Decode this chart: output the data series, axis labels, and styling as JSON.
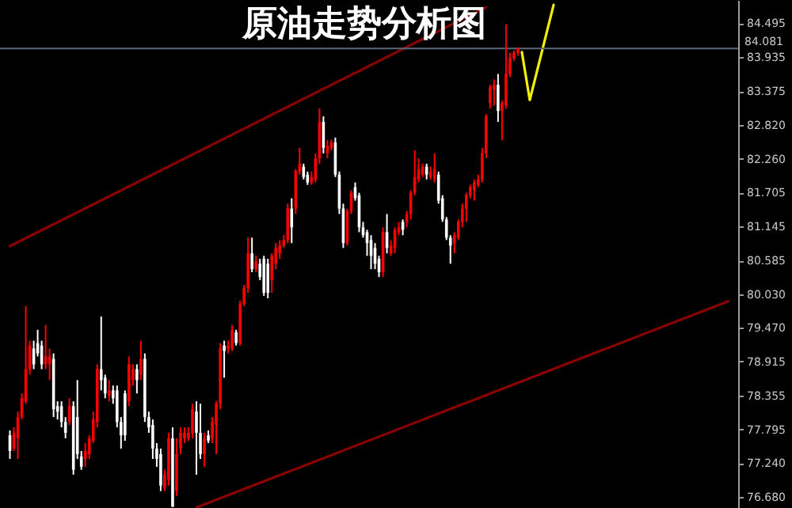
{
  "chart_data": {
    "type": "candlestick",
    "title": "原油走势分析图",
    "categories": [
      null,
      null,
      null,
      null,
      null,
      null,
      null,
      null,
      null,
      null,
      null,
      null,
      null,
      null,
      null,
      null,
      null,
      null,
      null,
      null,
      null,
      null,
      null,
      null,
      null,
      null,
      null,
      null,
      null,
      null,
      null,
      null,
      null,
      null,
      null,
      null,
      null,
      null,
      null,
      null,
      null,
      null,
      null,
      null,
      null,
      null,
      null,
      null,
      null,
      null,
      null,
      null,
      null,
      null,
      null,
      null,
      null,
      null,
      null,
      null,
      null,
      null,
      null,
      null,
      null,
      null,
      null,
      null,
      null,
      null,
      null,
      null,
      null,
      null,
      null,
      null,
      null,
      null,
      null,
      null,
      null,
      null,
      null,
      null,
      null,
      null,
      null,
      null,
      null,
      null,
      null,
      null,
      null,
      null,
      null,
      null,
      null,
      null,
      null,
      null,
      null,
      null,
      null,
      null,
      null,
      null,
      null,
      null,
      null,
      null,
      null,
      null,
      null,
      null,
      null,
      null,
      null,
      null,
      null,
      null,
      null,
      null,
      null,
      null,
      null,
      null,
      null,
      null,
      null,
      null,
      null,
      null,
      null,
      null,
      null,
      null,
      null,
      null,
      null,
      null,
      null,
      null,
      null,
      null,
      null,
      null,
      null,
      null,
      null,
      null,
      null,
      null,
      null,
      null,
      null,
      null,
      null,
      null,
      null,
      null,
      null,
      null,
      null,
      null,
      null,
      null,
      null,
      null,
      null,
      null,
      null,
      null,
      null,
      null,
      null,
      null,
      null,
      null,
      null,
      null,
      null,
      null
    ],
    "ohlc": [
      [
        77.7,
        77.78,
        77.31,
        77.44
      ],
      [
        77.48,
        77.83,
        77.44,
        77.74
      ],
      [
        77.65,
        78.09,
        77.31,
        78.0
      ],
      [
        78.0,
        78.39,
        77.96,
        78.31
      ],
      [
        78.26,
        79.83,
        78.22,
        78.79
      ],
      [
        78.79,
        79.26,
        78.7,
        79.18
      ],
      [
        79.13,
        79.26,
        78.79,
        78.87
      ],
      [
        79.22,
        79.44,
        79.0,
        79.05
      ],
      [
        79.18,
        79.26,
        78.79,
        78.87
      ],
      [
        78.87,
        79.52,
        78.79,
        79.0
      ],
      [
        78.87,
        79.13,
        78.61,
        79.0
      ],
      [
        78.96,
        79.05,
        78.0,
        78.13
      ],
      [
        78.18,
        78.26,
        77.96,
        78.09
      ],
      [
        78.18,
        78.26,
        77.83,
        77.92
      ],
      [
        77.92,
        78.0,
        77.65,
        77.74
      ],
      [
        77.92,
        78.31,
        77.87,
        78.18
      ],
      [
        78.18,
        78.26,
        77.05,
        77.13
      ],
      [
        78.0,
        78.61,
        77.31,
        77.39
      ],
      [
        77.35,
        77.44,
        77.13,
        77.18
      ],
      [
        77.31,
        77.57,
        77.18,
        77.44
      ],
      [
        77.39,
        77.7,
        77.31,
        77.65
      ],
      [
        77.61,
        78.09,
        77.57,
        77.96
      ],
      [
        77.92,
        78.87,
        77.83,
        78.79
      ],
      [
        78.79,
        79.66,
        78.44,
        78.61
      ],
      [
        78.65,
        78.7,
        78.31,
        78.39
      ],
      [
        78.35,
        78.61,
        78.26,
        78.44
      ],
      [
        78.44,
        78.52,
        78.22,
        78.31
      ],
      [
        78.44,
        78.52,
        77.83,
        77.92
      ],
      [
        77.92,
        78.0,
        77.48,
        77.7
      ],
      [
        78.39,
        78.44,
        77.61,
        77.7
      ],
      [
        78.26,
        79.0,
        78.18,
        78.87
      ],
      [
        78.61,
        78.87,
        78.52,
        78.79
      ],
      [
        78.79,
        78.87,
        78.39,
        78.61
      ],
      [
        78.7,
        79.26,
        78.61,
        78.96
      ],
      [
        78.96,
        79.05,
        77.92,
        78.0
      ],
      [
        78.0,
        78.09,
        77.74,
        77.83
      ],
      [
        77.87,
        77.96,
        77.31,
        77.48
      ],
      [
        77.48,
        77.57,
        77.18,
        77.31
      ],
      [
        77.39,
        77.48,
        76.78,
        76.87
      ],
      [
        76.83,
        77.13,
        76.78,
        77.05
      ],
      [
        76.96,
        77.74,
        76.87,
        77.65
      ],
      [
        77.65,
        77.83,
        76.52,
        76.52
      ],
      [
        76.78,
        77.65,
        76.7,
        77.39
      ],
      [
        77.48,
        77.83,
        77.39,
        77.74
      ],
      [
        77.65,
        77.83,
        77.57,
        77.74
      ],
      [
        77.65,
        77.83,
        77.61,
        77.74
      ],
      [
        77.74,
        78.22,
        77.65,
        78.13
      ],
      [
        78.09,
        78.26,
        77.05,
        77.74
      ],
      [
        77.74,
        78.22,
        77.31,
        77.39
      ],
      [
        77.39,
        77.74,
        77.18,
        77.65
      ],
      [
        77.7,
        77.78,
        77.57,
        77.61
      ],
      [
        77.65,
        78.0,
        77.57,
        77.92
      ],
      [
        77.87,
        78.26,
        77.39,
        78.22
      ],
      [
        78.22,
        79.22,
        78.13,
        79.13
      ],
      [
        79.18,
        79.26,
        78.65,
        79.09
      ],
      [
        79.13,
        79.26,
        79.05,
        79.18
      ],
      [
        79.13,
        79.52,
        79.09,
        79.44
      ],
      [
        79.4,
        79.44,
        79.18,
        79.22
      ],
      [
        79.22,
        79.92,
        79.18,
        79.87
      ],
      [
        79.87,
        80.18,
        79.83,
        80.13
      ],
      [
        80.13,
        80.96,
        80.05,
        80.7
      ],
      [
        80.7,
        80.96,
        80.39,
        80.44
      ],
      [
        80.44,
        80.66,
        80.39,
        80.57
      ],
      [
        80.53,
        80.61,
        80.26,
        80.31
      ],
      [
        80.61,
        80.66,
        80.0,
        80.05
      ],
      [
        80.53,
        80.61,
        79.96,
        80.05
      ],
      [
        80.26,
        80.7,
        80.05,
        80.66
      ],
      [
        80.53,
        80.87,
        80.44,
        80.79
      ],
      [
        80.7,
        80.92,
        80.61,
        80.83
      ],
      [
        80.83,
        81.0,
        80.79,
        80.92
      ],
      [
        80.92,
        81.52,
        80.87,
        81.44
      ],
      [
        81.44,
        81.61,
        80.87,
        81.13
      ],
      [
        81.44,
        82.09,
        81.35,
        82.05
      ],
      [
        82.05,
        82.44,
        82.0,
        82.18
      ],
      [
        82.13,
        82.18,
        81.92,
        81.96
      ],
      [
        82.0,
        82.05,
        81.83,
        81.87
      ],
      [
        81.87,
        82.05,
        81.83,
        81.96
      ],
      [
        81.92,
        82.35,
        81.87,
        82.27
      ],
      [
        82.27,
        83.09,
        82.18,
        82.87
      ],
      [
        82.87,
        82.96,
        82.35,
        82.44
      ],
      [
        82.35,
        82.57,
        82.27,
        82.48
      ],
      [
        82.44,
        82.57,
        82.4,
        82.53
      ],
      [
        82.53,
        82.61,
        81.96,
        82.0
      ],
      [
        82.0,
        82.05,
        81.35,
        81.44
      ],
      [
        81.44,
        81.52,
        80.79,
        80.87
      ],
      [
        80.87,
        81.44,
        80.83,
        81.4
      ],
      [
        81.4,
        81.74,
        81.35,
        81.7
      ],
      [
        81.79,
        81.87,
        81.57,
        81.61
      ],
      [
        81.66,
        81.7,
        81.05,
        81.13
      ],
      [
        81.13,
        81.22,
        80.96,
        81.0
      ],
      [
        81.05,
        81.09,
        80.66,
        80.87
      ],
      [
        80.92,
        81.0,
        80.44,
        80.66
      ],
      [
        80.79,
        80.87,
        80.44,
        80.53
      ],
      [
        80.61,
        80.66,
        80.31,
        80.39
      ],
      [
        80.39,
        81.13,
        80.31,
        81.05
      ],
      [
        81.05,
        81.35,
        80.7,
        80.79
      ],
      [
        80.7,
        80.92,
        80.66,
        80.83
      ],
      [
        80.79,
        81.13,
        80.7,
        81.09
      ],
      [
        81.05,
        81.22,
        81.0,
        81.13
      ],
      [
        81.22,
        81.26,
        81.0,
        81.09
      ],
      [
        81.22,
        81.4,
        81.13,
        81.35
      ],
      [
        81.35,
        81.74,
        81.26,
        81.7
      ],
      [
        81.7,
        82.4,
        81.66,
        81.96
      ],
      [
        81.92,
        82.27,
        81.87,
        82.09
      ],
      [
        82.0,
        82.18,
        81.96,
        82.13
      ],
      [
        82.13,
        82.18,
        81.92,
        82.0
      ],
      [
        81.96,
        82.13,
        81.92,
        82.05
      ],
      [
        81.92,
        82.35,
        81.87,
        82.09
      ],
      [
        82.0,
        82.05,
        81.52,
        81.57
      ],
      [
        81.61,
        81.66,
        81.22,
        81.26
      ],
      [
        81.26,
        81.3,
        80.92,
        80.96
      ],
      [
        80.96,
        81.0,
        80.53,
        80.83
      ],
      [
        80.87,
        81.05,
        80.7,
        81.0
      ],
      [
        80.96,
        81.26,
        80.92,
        81.22
      ],
      [
        81.22,
        81.52,
        81.13,
        81.44
      ],
      [
        81.44,
        81.7,
        81.22,
        81.66
      ],
      [
        81.66,
        81.83,
        81.61,
        81.79
      ],
      [
        81.74,
        81.92,
        81.57,
        81.87
      ],
      [
        81.83,
        82.0,
        81.79,
        81.92
      ],
      [
        81.92,
        82.44,
        81.87,
        82.35
      ],
      [
        82.35,
        83.0,
        82.27,
        82.96
      ],
      [
        83.18,
        83.48,
        83.09,
        83.44
      ],
      [
        83.4,
        83.57,
        83.14,
        83.48
      ],
      [
        83.48,
        83.66,
        82.87,
        83.05
      ],
      [
        83.05,
        83.22,
        82.57,
        83.18
      ],
      [
        83.14,
        84.48,
        83.09,
        83.66
      ],
      [
        83.66,
        84.01,
        83.61,
        83.92
      ],
      [
        83.92,
        84.05,
        83.88,
        84.01
      ],
      [
        84.01,
        84.1,
        83.96,
        84.08
      ],
      null,
      null,
      null,
      null,
      null,
      null,
      null,
      null,
      null,
      null,
      null,
      null,
      null,
      null,
      null,
      null,
      null,
      null,
      null,
      null,
      null,
      null,
      null,
      null,
      null,
      null,
      null,
      null,
      null,
      null,
      null,
      null,
      null,
      null,
      null,
      null,
      null,
      null,
      null,
      null,
      null,
      null,
      null,
      null,
      null,
      null,
      null,
      null,
      null,
      null,
      null,
      null,
      null
    ],
    "colors": [
      "#ffffff",
      "#ff0000",
      "#ff0000",
      "#ff0000",
      "#ff0000",
      "#ff0000",
      "#ffffff",
      "#ffffff",
      "#ffffff",
      "#ff0000",
      "#ff0000",
      "#ffffff",
      "#ffffff",
      "#ffffff",
      "#ffffff",
      "#ff0000",
      "#ffffff",
      "#ffffff",
      "#ffffff",
      "#ff0000",
      "#ff0000",
      "#ff0000",
      "#ff0000",
      "#ffffff",
      "#ffffff",
      "#ff0000",
      "#ffffff",
      "#ffffff",
      "#ffffff",
      "#ffffff",
      "#ff0000",
      "#ff0000",
      "#ffffff",
      "#ff0000",
      "#ffffff",
      "#ffffff",
      "#ffffff",
      "#ffffff",
      "#ffffff",
      "#ff0000",
      "#ff0000",
      "#ffffff",
      "#ff0000",
      "#ff0000",
      "#ff0000",
      "#ff0000",
      "#ff0000",
      "#ffffff",
      "#ffffff",
      "#ff0000",
      "#ffffff",
      "#ff0000",
      "#ff0000",
      "#ff0000",
      "#ffffff",
      "#ff0000",
      "#ff0000",
      "#ffffff",
      "#ff0000",
      "#ff0000",
      "#ff0000",
      "#ffffff",
      "#ff0000",
      "#ffffff",
      "#ffffff",
      "#ffffff",
      "#ff0000",
      "#ff0000",
      "#ff0000",
      "#ff0000",
      "#ff0000",
      "#ffffff",
      "#ff0000",
      "#ff0000",
      "#ffffff",
      "#ffffff",
      "#ff0000",
      "#ff0000",
      "#ff0000",
      "#ffffff",
      "#ff0000",
      "#ff0000",
      "#ffffff",
      "#ffffff",
      "#ffffff",
      "#ff0000",
      "#ff0000",
      "#ffffff",
      "#ffffff",
      "#ffffff",
      "#ffffff",
      "#ffffff",
      "#ffffff",
      "#ffffff",
      "#ff0000",
      "#ffffff",
      "#ff0000",
      "#ff0000",
      "#ff0000",
      "#ffffff",
      "#ff0000",
      "#ff0000",
      "#ff0000",
      "#ff0000",
      "#ff0000",
      "#ffffff",
      "#ff0000",
      "#ff0000",
      "#ffffff",
      "#ffffff",
      "#ffffff",
      "#ffffff",
      "#ff0000",
      "#ff0000",
      "#ff0000",
      "#ff0000",
      "#ff0000",
      "#ff0000",
      "#ff0000",
      "#ff0000",
      "#ff0000",
      "#ff0000",
      "#ff0000",
      "#ffffff",
      "#ff0000",
      "#ff0000",
      "#ff0000",
      "#ff0000",
      "#ff0000",
      null,
      null,
      null,
      null,
      null,
      null,
      null,
      null,
      null,
      null,
      null,
      null,
      null,
      null,
      null,
      null,
      null,
      null,
      null,
      null,
      null,
      null,
      null,
      null,
      null,
      null,
      null,
      null,
      null,
      null,
      null,
      null,
      null,
      null,
      null,
      null,
      null,
      null,
      null,
      null,
      null,
      null,
      null,
      null,
      null,
      null,
      null,
      null,
      null,
      null,
      null,
      null,
      null
    ],
    "series": [
      {
        "type": "line",
        "color": "#8b0000",
        "values": [
          80.82,
          null,
          null,
          null,
          null,
          null,
          null,
          null,
          null,
          null,
          null,
          null,
          null,
          null,
          null,
          null,
          null,
          null,
          null,
          null,
          null,
          null,
          null,
          null,
          null,
          null,
          null,
          null,
          null,
          null,
          null,
          null,
          null,
          null,
          null,
          null,
          null,
          null,
          null,
          null,
          null,
          null,
          null,
          null,
          null,
          null,
          null,
          null,
          null,
          null,
          null,
          null,
          null,
          null,
          null,
          null,
          null,
          null,
          null,
          null,
          null,
          null,
          null,
          null,
          null,
          null,
          null,
          null,
          null,
          null,
          null,
          null,
          null,
          null,
          null,
          null,
          null,
          null,
          null,
          null,
          null,
          null,
          null,
          null,
          null,
          null,
          null,
          null,
          null,
          null,
          null,
          null,
          null,
          null,
          null,
          null,
          null,
          null,
          null,
          null,
          null,
          null,
          null,
          null,
          null,
          null,
          null,
          null,
          null,
          null,
          null,
          null,
          null,
          null,
          null,
          null,
          null,
          null,
          null,
          null,
          84.76,
          null,
          null,
          null,
          null,
          null,
          null,
          null,
          null,
          null,
          null,
          null,
          null,
          null,
          null,
          null,
          null,
          null,
          null,
          null,
          null,
          null,
          null,
          null,
          null,
          null,
          null,
          null,
          null,
          null,
          null,
          null,
          null,
          null,
          null,
          null,
          null,
          null,
          null,
          null,
          null,
          null,
          null,
          null,
          null,
          null,
          null,
          null,
          null,
          null,
          null,
          null,
          null,
          null,
          null,
          null,
          null,
          null,
          null,
          null,
          null,
          null
        ]
      },
      {
        "type": "line",
        "color": "#8b0000",
        "values": [
          null,
          null,
          null,
          null,
          null,
          null,
          null,
          null,
          null,
          null,
          null,
          null,
          null,
          null,
          null,
          null,
          null,
          null,
          null,
          null,
          null,
          null,
          null,
          null,
          null,
          null,
          null,
          null,
          null,
          null,
          null,
          null,
          null,
          null,
          null,
          null,
          null,
          null,
          null,
          null,
          null,
          null,
          null,
          null,
          null,
          null,
          null,
          76.51,
          null,
          null,
          null,
          null,
          null,
          null,
          null,
          null,
          null,
          null,
          null,
          null,
          null,
          null,
          null,
          null,
          null,
          null,
          null,
          null,
          null,
          null,
          null,
          null,
          null,
          null,
          null,
          null,
          null,
          null,
          null,
          null,
          null,
          null,
          null,
          null,
          null,
          null,
          null,
          null,
          null,
          null,
          null,
          null,
          null,
          null,
          null,
          null,
          null,
          null,
          null,
          null,
          null,
          null,
          null,
          null,
          null,
          null,
          null,
          null,
          null,
          null,
          null,
          null,
          null,
          null,
          null,
          null,
          null,
          null,
          null,
          null,
          null,
          null,
          null,
          null,
          null,
          null,
          null,
          null,
          null,
          null,
          null,
          null,
          null,
          null,
          null,
          null,
          null,
          null,
          null,
          null,
          null,
          null,
          null,
          null,
          null,
          null,
          null,
          null,
          null,
          null,
          null,
          null,
          null,
          null,
          null,
          null,
          null,
          null,
          null,
          null,
          null,
          null,
          null,
          null,
          null,
          null,
          null,
          null,
          null,
          null,
          null,
          null,
          null,
          null,
          null,
          null,
          null,
          null,
          null,
          null,
          null,
          79.91
        ]
      },
      {
        "type": "line",
        "color": "#f0f000",
        "values": [
          null,
          null,
          null,
          null,
          null,
          null,
          null,
          null,
          null,
          null,
          null,
          null,
          null,
          null,
          null,
          null,
          null,
          null,
          null,
          null,
          null,
          null,
          null,
          null,
          null,
          null,
          null,
          null,
          null,
          null,
          null,
          null,
          null,
          null,
          null,
          null,
          null,
          null,
          null,
          null,
          null,
          null,
          null,
          null,
          null,
          null,
          null,
          null,
          null,
          null,
          null,
          null,
          null,
          null,
          null,
          null,
          null,
          null,
          null,
          null,
          null,
          null,
          null,
          null,
          null,
          null,
          null,
          null,
          null,
          null,
          null,
          null,
          null,
          null,
          null,
          null,
          null,
          null,
          null,
          null,
          null,
          null,
          null,
          null,
          null,
          null,
          null,
          null,
          null,
          null,
          null,
          null,
          null,
          null,
          null,
          null,
          null,
          null,
          null,
          null,
          null,
          null,
          null,
          null,
          null,
          null,
          null,
          null,
          null,
          null,
          null,
          null,
          null,
          null,
          null,
          null,
          null,
          null,
          null,
          null,
          null,
          null,
          null,
          null,
          null,
          null,
          null,
          null,
          null,
          84.02,
          null,
          83.23,
          null,
          null,
          null,
          null,
          null,
          84.8,
          null,
          null,
          null,
          null,
          null,
          null,
          null,
          null,
          null,
          null,
          null,
          null,
          null,
          null,
          null,
          null,
          null,
          null,
          null,
          null,
          null,
          null,
          null,
          null,
          null,
          null,
          null,
          null,
          null,
          null,
          null,
          null,
          null,
          null,
          null,
          null,
          null,
          null,
          null,
          null,
          null,
          null,
          null,
          null
        ]
      }
    ],
    "ylim": [
      76.5,
      84.88
    ],
    "yticks": [
      {
        "value": 76.68,
        "label": "76.680"
      },
      {
        "value": 77.24,
        "label": "77.240"
      },
      77.795,
      78.355,
      78.915,
      {
        "value": 79.47,
        "label": "79.470"
      },
      {
        "value": 80.03,
        "label": "80.030"
      },
      80.585,
      81.145,
      81.705,
      {
        "value": 82.26,
        "label": "82.260"
      },
      {
        "value": 82.82,
        "label": "82.820"
      },
      83.375,
      83.935,
      84.495
    ],
    "ref_lines": [
      {
        "axis": "y",
        "value": 84.081,
        "label": "84.081",
        "color": "#5a6878",
        "line_style": "solid"
      }
    ],
    "tick_labels": "y",
    "grid": false,
    "line_style": "solid",
    "marker": "none"
  }
}
